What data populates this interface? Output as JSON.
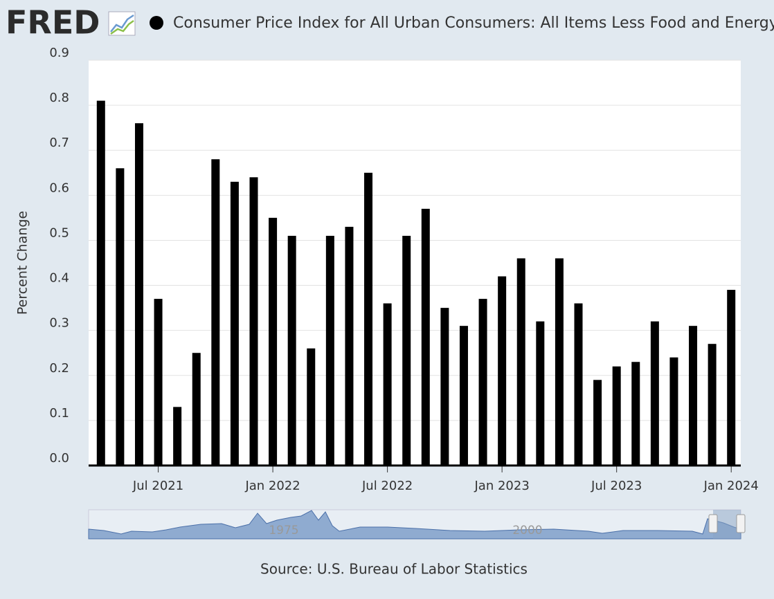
{
  "logo": "FRED",
  "chart_data": {
    "type": "bar",
    "title": "Consumer Price Index for All Urban Consumers: All Items Less Food and Energy in U.S",
    "y_label": "Percent Change",
    "source": "Source: U.S. Bureau of Labor Statistics",
    "categories": [
      null,
      null,
      null,
      "Jul 2021",
      null,
      null,
      null,
      null,
      null,
      "Jan 2022",
      null,
      null,
      null,
      null,
      null,
      "Jul 2022",
      null,
      null,
      null,
      null,
      null,
      "Jan 2023",
      null,
      null,
      null,
      null,
      null,
      "Jul 2023",
      null,
      null,
      null,
      null,
      null,
      "Jan 2024"
    ],
    "series": [
      {
        "name": "Consumer Price Index for All Urban Consumers: All Items Less Food and Energy in U.S",
        "color": "#000000",
        "values": [
          0.81,
          0.66,
          0.76,
          0.37,
          0.13,
          0.25,
          0.68,
          0.63,
          0.64,
          0.55,
          0.51,
          0.26,
          0.51,
          0.53,
          0.65,
          0.36,
          0.51,
          0.57,
          0.35,
          0.31,
          0.37,
          0.42,
          0.46,
          0.32,
          0.46,
          0.36,
          0.19,
          0.22,
          0.23,
          0.32,
          0.24,
          0.31,
          0.27,
          0.39
        ]
      }
    ],
    "ylim": [
      0,
      0.9
    ],
    "yticks": [
      {
        "value": 0,
        "label": "0.0"
      },
      0.1,
      0.2,
      0.3,
      0.4,
      0.5,
      0.6,
      0.7,
      0.8,
      0.9
    ],
    "grid": true,
    "navigator_labels": [
      "1975",
      "2000"
    ]
  }
}
